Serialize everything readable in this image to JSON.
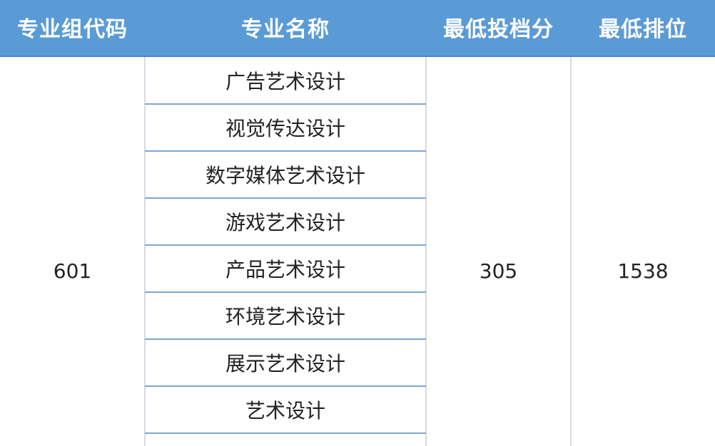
{
  "header": {
    "columns": [
      "专业组代码",
      "专业名称",
      "最低投档分",
      "最低排位"
    ],
    "background_color": "#5b9bd5"
  },
  "group": {
    "code": "601",
    "majors": [
      "广告艺术设计",
      "视觉传达设计",
      "数字媒体艺术设计",
      "游戏艺术设计",
      "产品艺术设计",
      "环境艺术设计",
      "展示艺术设计",
      "艺术设计"
    ],
    "min_score": "305",
    "min_rank": "1538"
  }
}
